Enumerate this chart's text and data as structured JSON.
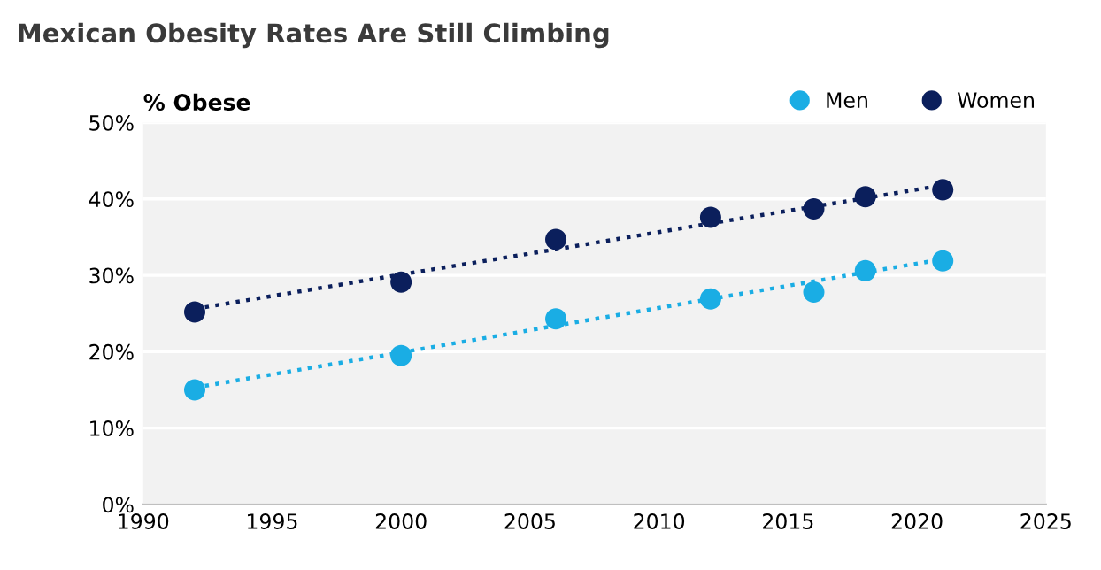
{
  "chart_data": {
    "type": "scatter",
    "title": "Mexican Obesity Rates Are Still Climbing",
    "ylabel": "% Obese",
    "x": [
      1992,
      2000,
      2006,
      2012,
      2016,
      2018,
      2021
    ],
    "series": [
      {
        "name": "Men",
        "color": "#1aade4",
        "marker": "circle",
        "values": [
          15.0,
          19.5,
          24.3,
          26.9,
          27.8,
          30.6,
          31.9
        ]
      },
      {
        "name": "Women",
        "color": "#0b1f5c",
        "marker": "circle",
        "values": [
          25.2,
          29.1,
          34.7,
          37.6,
          38.7,
          40.3,
          41.2
        ]
      },
      {
        "type": "line",
        "marker": "none",
        "line_style": "dotted",
        "color": "#1aade4",
        "values": [
          15.3,
          19.9,
          23.4,
          26.9,
          29.2,
          30.4,
          32.1
        ]
      },
      {
        "type": "line",
        "marker": "none",
        "line_style": "dotted",
        "color": "#0b1f5c",
        "values": [
          25.6,
          30.1,
          33.4,
          36.8,
          39.0,
          40.1,
          41.8
        ]
      }
    ],
    "xlim": [
      1990,
      2025
    ],
    "xticks": [
      1990,
      1995,
      2000,
      2005,
      2010,
      2015,
      2020,
      2025
    ],
    "ylim": [
      0,
      50
    ],
    "yticks": [
      {
        "value": 0,
        "label": "0%"
      },
      {
        "value": 10,
        "label": "10%"
      },
      {
        "value": 20,
        "label": "20%"
      },
      {
        "value": 30,
        "label": "30%"
      },
      {
        "value": 40,
        "label": "40%"
      },
      {
        "value": 50,
        "label": "50%"
      }
    ],
    "grid": "y",
    "legend": "top right"
  }
}
